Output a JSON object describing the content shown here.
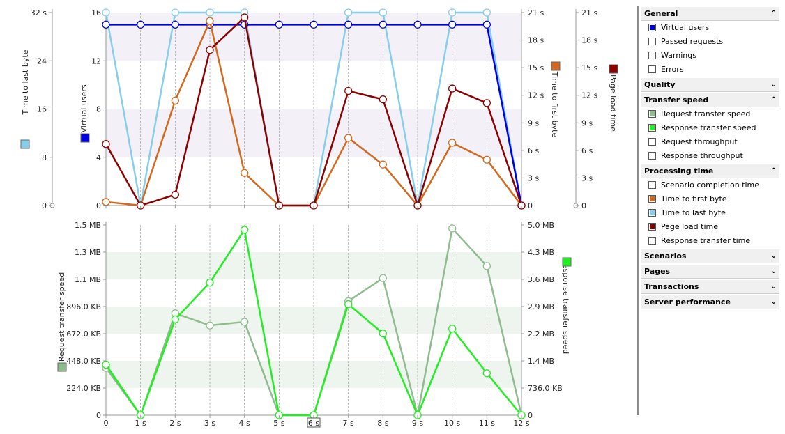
{
  "x_ticks": [
    "0",
    "1 s",
    "2 s",
    "3 s",
    "4 s",
    "5 s",
    "6 s",
    "7 s",
    "8 s",
    "9 s",
    "10 s",
    "11 s",
    "12 s"
  ],
  "highlighted_x_tick": "6 s",
  "chart_data": [
    {
      "type": "line",
      "x": [
        0,
        1,
        2,
        3,
        4,
        5,
        6,
        7,
        8,
        9,
        10,
        11,
        12
      ],
      "axes": {
        "outer_left": {
          "label": "Time to last byte",
          "ticks": [
            "32 s",
            "24",
            "16",
            "8",
            "0"
          ],
          "color": "#87ceeb"
        },
        "left": {
          "label": "Virtual users",
          "ticks": [
            "16",
            "12",
            "8",
            "4",
            "0"
          ],
          "ylim": [
            0,
            16
          ],
          "color": "#0000e0"
        },
        "right": {
          "label": "Time to first byte",
          "ticks": [
            "21 s",
            "18 s",
            "15 s",
            "12 s",
            "9 s",
            "6 s",
            "3 s",
            "0"
          ],
          "color": "#d2691e"
        },
        "outer_right": {
          "label": "Page load time",
          "ticks": [
            "21 s",
            "18 s",
            "15 s",
            "12 s",
            "9 s",
            "6 s",
            "3 s",
            "0"
          ],
          "color": "#8b0000"
        }
      },
      "series": [
        {
          "name": "Time to last byte",
          "axis": "left",
          "color": "#87ceeb",
          "values": [
            16,
            0,
            16,
            16,
            16,
            0,
            0,
            16,
            16,
            0,
            16,
            16,
            0
          ]
        },
        {
          "name": "Virtual users",
          "axis": "left",
          "color": "#0000e0",
          "values": [
            15,
            15,
            15,
            15,
            15,
            15,
            15,
            15,
            15,
            15,
            15,
            15,
            0
          ]
        },
        {
          "name": "Time to first byte",
          "axis": "left",
          "color": "#d2691e",
          "values": [
            0.3,
            0,
            8.7,
            15.3,
            2.7,
            0,
            0,
            5.6,
            3.4,
            0,
            5.2,
            3.8,
            0
          ]
        },
        {
          "name": "Page load time",
          "axis": "left",
          "color": "#8b0000",
          "values": [
            5.1,
            0,
            0.9,
            12.9,
            15.6,
            0,
            0,
            9.5,
            8.8,
            0,
            9.7,
            8.5,
            0
          ]
        }
      ]
    },
    {
      "type": "line",
      "x": [
        0,
        1,
        2,
        3,
        4,
        5,
        6,
        7,
        8,
        9,
        10,
        11,
        12
      ],
      "axes": {
        "left": {
          "label": "Request transfer speed",
          "ticks": [
            "1.5 MB",
            "1.3 MB",
            "1.1 MB",
            "896.0 KB",
            "672.0 KB",
            "448.0 KB",
            "224.0 KB",
            "0"
          ],
          "unit": "KB",
          "ylim": [
            0,
            1568
          ]
        },
        "right": {
          "label": "Response transfer speed",
          "ticks": [
            "5.0 MB",
            "4.3 MB",
            "3.6 MB",
            "2.9 MB",
            "2.2 MB",
            "1.4 MB",
            "736.0 KB",
            "0"
          ],
          "unit": "KB",
          "ylim": [
            0,
            5120
          ]
        }
      },
      "series": [
        {
          "name": "Request transfer speed",
          "axis": "left",
          "color": "#8fbc8f",
          "values": [
            390,
            0,
            840,
            740,
            770,
            0,
            0,
            940,
            1130,
            0,
            1540,
            1230,
            0
          ]
        },
        {
          "name": "Response transfer speed",
          "axis": "right",
          "color": "#22ee22",
          "values": [
            1360,
            0,
            2580,
            3570,
            4990,
            0,
            0,
            2990,
            2200,
            0,
            2330,
            1130,
            0
          ]
        }
      ]
    }
  ],
  "sidebar": {
    "sections": [
      {
        "title": "General",
        "chevron": "⌃",
        "items": [
          {
            "label": "Virtual users",
            "color": "#0000e0"
          },
          {
            "label": "Passed requests",
            "color": ""
          },
          {
            "label": "Warnings",
            "color": ""
          },
          {
            "label": "Errors",
            "color": ""
          }
        ]
      },
      {
        "title": "Quality",
        "chevron": "⌄",
        "items": []
      },
      {
        "title": "Transfer speed",
        "chevron": "⌃",
        "items": [
          {
            "label": "Request transfer speed",
            "color": "#8fbc8f"
          },
          {
            "label": "Response transfer speed",
            "color": "#22ee22"
          },
          {
            "label": "Request throughput",
            "color": ""
          },
          {
            "label": "Response throughput",
            "color": ""
          }
        ]
      },
      {
        "title": "Processing time",
        "chevron": "⌃",
        "items": [
          {
            "label": "Scenario completion time",
            "color": ""
          },
          {
            "label": "Time to first byte",
            "color": "#d2691e"
          },
          {
            "label": "Time to last byte",
            "color": "#87ceeb"
          },
          {
            "label": "Page load time",
            "color": "#8b0000"
          },
          {
            "label": "Response transfer time",
            "color": ""
          }
        ]
      },
      {
        "title": "Scenarios",
        "chevron": "⌄",
        "items": []
      },
      {
        "title": "Pages",
        "chevron": "⌄",
        "items": []
      },
      {
        "title": "Transactions",
        "chevron": "⌄",
        "items": []
      },
      {
        "title": "Server performance",
        "chevron": "⌄",
        "items": []
      }
    ]
  }
}
